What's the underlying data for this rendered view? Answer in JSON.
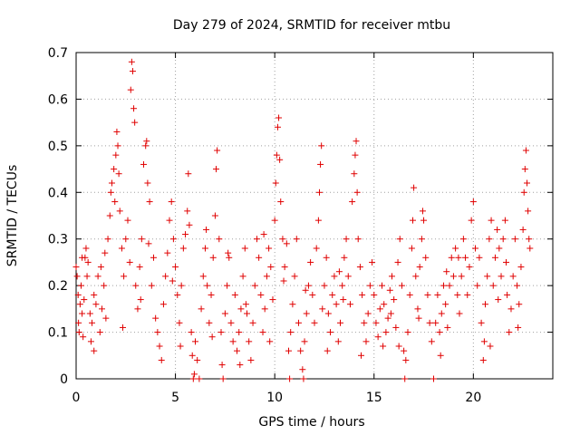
{
  "chart_data": {
    "type": "scatter",
    "title": "Day 279 of 2024, SRMTID for receiver mtbu",
    "xlabel": "GPS time / hours",
    "ylabel": "SRMTID / TECUs",
    "xlim": [
      0,
      24
    ],
    "ylim": [
      0,
      0.7
    ],
    "xticks": [
      0,
      5,
      10,
      15,
      20
    ],
    "xtick_labels": [
      "0",
      "5",
      "10",
      "15",
      "20"
    ],
    "yticks": [
      0,
      0.1,
      0.2,
      0.3,
      0.4,
      0.5,
      0.6,
      0.7
    ],
    "ytick_labels": [
      "0",
      "0.1",
      "0.2",
      "0.3",
      "0.4",
      "0.5",
      "0.6",
      "0.7"
    ],
    "grid": true,
    "marker": "plus",
    "color": "#e00000",
    "series": [
      {
        "name": "SRMTID",
        "points": [
          [
            0.0,
            0.24
          ],
          [
            0.05,
            0.22
          ],
          [
            0.1,
            0.18
          ],
          [
            0.12,
            0.12
          ],
          [
            0.15,
            0.1
          ],
          [
            0.2,
            0.16
          ],
          [
            0.25,
            0.2
          ],
          [
            0.3,
            0.14
          ],
          [
            0.35,
            0.09
          ],
          [
            0.4,
            0.17
          ],
          [
            0.45,
            0.26
          ],
          [
            0.5,
            0.28
          ],
          [
            0.55,
            0.22
          ],
          [
            0.6,
            0.25
          ],
          [
            0.7,
            0.14
          ],
          [
            0.75,
            0.08
          ],
          [
            0.8,
            0.12
          ],
          [
            0.9,
            0.18
          ],
          [
            1.0,
            0.16
          ],
          [
            1.1,
            0.22
          ],
          [
            1.2,
            0.1
          ],
          [
            1.3,
            0.15
          ],
          [
            1.4,
            0.2
          ],
          [
            1.5,
            0.13
          ],
          [
            1.6,
            0.3
          ],
          [
            1.7,
            0.35
          ],
          [
            1.75,
            0.4
          ],
          [
            1.8,
            0.42
          ],
          [
            1.9,
            0.45
          ],
          [
            1.95,
            0.38
          ],
          [
            2.0,
            0.48
          ],
          [
            2.05,
            0.53
          ],
          [
            2.1,
            0.5
          ],
          [
            2.15,
            0.44
          ],
          [
            2.2,
            0.36
          ],
          [
            2.3,
            0.28
          ],
          [
            2.4,
            0.22
          ],
          [
            2.5,
            0.3
          ],
          [
            2.6,
            0.34
          ],
          [
            2.7,
            0.25
          ],
          [
            2.75,
            0.62
          ],
          [
            2.8,
            0.68
          ],
          [
            2.85,
            0.66
          ],
          [
            2.9,
            0.58
          ],
          [
            2.95,
            0.55
          ],
          [
            3.0,
            0.2
          ],
          [
            3.1,
            0.15
          ],
          [
            3.2,
            0.24
          ],
          [
            3.3,
            0.3
          ],
          [
            3.4,
            0.46
          ],
          [
            3.5,
            0.5
          ],
          [
            3.55,
            0.51
          ],
          [
            3.6,
            0.42
          ],
          [
            3.7,
            0.38
          ],
          [
            3.8,
            0.2
          ],
          [
            3.9,
            0.26
          ],
          [
            4.0,
            0.13
          ],
          [
            4.1,
            0.1
          ],
          [
            4.2,
            0.07
          ],
          [
            4.3,
            0.04
          ],
          [
            4.4,
            0.16
          ],
          [
            4.5,
            0.22
          ],
          [
            4.6,
            0.27
          ],
          [
            4.7,
            0.34
          ],
          [
            4.8,
            0.38
          ],
          [
            4.9,
            0.3
          ],
          [
            5.0,
            0.24
          ],
          [
            5.1,
            0.18
          ],
          [
            5.2,
            0.12
          ],
          [
            5.3,
            0.2
          ],
          [
            5.4,
            0.28
          ],
          [
            5.5,
            0.31
          ],
          [
            5.6,
            0.36
          ],
          [
            5.65,
            0.44
          ],
          [
            5.7,
            0.33
          ],
          [
            5.8,
            0.1
          ],
          [
            5.85,
            0.05
          ],
          [
            5.9,
            0.0
          ],
          [
            5.95,
            0.01
          ],
          [
            6.0,
            0.08
          ],
          [
            6.1,
            0.04
          ],
          [
            6.2,
            0.0
          ],
          [
            6.3,
            0.15
          ],
          [
            6.4,
            0.22
          ],
          [
            6.5,
            0.28
          ],
          [
            6.6,
            0.2
          ],
          [
            6.7,
            0.12
          ],
          [
            6.8,
            0.18
          ],
          [
            6.9,
            0.26
          ],
          [
            7.0,
            0.35
          ],
          [
            7.05,
            0.45
          ],
          [
            7.1,
            0.49
          ],
          [
            7.2,
            0.3
          ],
          [
            7.3,
            0.1
          ],
          [
            7.35,
            0.03
          ],
          [
            7.4,
            0.0
          ],
          [
            7.5,
            0.14
          ],
          [
            7.6,
            0.2
          ],
          [
            7.7,
            0.26
          ],
          [
            7.8,
            0.12
          ],
          [
            7.9,
            0.08
          ],
          [
            8.0,
            0.18
          ],
          [
            8.1,
            0.06
          ],
          [
            8.2,
            0.1
          ],
          [
            8.3,
            0.15
          ],
          [
            8.4,
            0.22
          ],
          [
            8.5,
            0.28
          ],
          [
            8.6,
            0.14
          ],
          [
            8.7,
            0.08
          ],
          [
            8.8,
            0.04
          ],
          [
            8.9,
            0.12
          ],
          [
            9.0,
            0.2
          ],
          [
            9.1,
            0.3
          ],
          [
            9.2,
            0.26
          ],
          [
            9.3,
            0.18
          ],
          [
            9.4,
            0.1
          ],
          [
            9.5,
            0.15
          ],
          [
            9.6,
            0.22
          ],
          [
            9.7,
            0.28
          ],
          [
            9.8,
            0.24
          ],
          [
            9.9,
            0.17
          ],
          [
            10.0,
            0.34
          ],
          [
            10.05,
            0.42
          ],
          [
            10.1,
            0.48
          ],
          [
            10.15,
            0.54
          ],
          [
            10.2,
            0.56
          ],
          [
            10.25,
            0.47
          ],
          [
            10.3,
            0.38
          ],
          [
            10.4,
            0.3
          ],
          [
            10.5,
            0.24
          ],
          [
            10.6,
            0.29
          ],
          [
            10.7,
            0.06
          ],
          [
            10.75,
            0.0
          ],
          [
            10.8,
            0.1
          ],
          [
            10.9,
            0.16
          ],
          [
            11.0,
            0.22
          ],
          [
            11.1,
            0.3
          ],
          [
            11.2,
            0.12
          ],
          [
            11.3,
            0.06
          ],
          [
            11.4,
            0.02
          ],
          [
            11.45,
            0.0
          ],
          [
            11.5,
            0.08
          ],
          [
            11.6,
            0.14
          ],
          [
            11.7,
            0.2
          ],
          [
            11.8,
            0.25
          ],
          [
            11.9,
            0.18
          ],
          [
            12.0,
            0.12
          ],
          [
            12.1,
            0.28
          ],
          [
            12.2,
            0.34
          ],
          [
            12.25,
            0.4
          ],
          [
            12.3,
            0.46
          ],
          [
            12.35,
            0.5
          ],
          [
            12.4,
            0.15
          ],
          [
            12.5,
            0.2
          ],
          [
            12.6,
            0.26
          ],
          [
            12.7,
            0.14
          ],
          [
            12.8,
            0.1
          ],
          [
            12.9,
            0.18
          ],
          [
            13.0,
            0.22
          ],
          [
            13.1,
            0.16
          ],
          [
            13.2,
            0.08
          ],
          [
            13.3,
            0.12
          ],
          [
            13.4,
            0.2
          ],
          [
            13.5,
            0.26
          ],
          [
            13.6,
            0.3
          ],
          [
            13.7,
            0.22
          ],
          [
            13.8,
            0.16
          ],
          [
            13.9,
            0.38
          ],
          [
            14.0,
            0.44
          ],
          [
            14.05,
            0.48
          ],
          [
            14.1,
            0.51
          ],
          [
            14.15,
            0.4
          ],
          [
            14.2,
            0.3
          ],
          [
            14.3,
            0.24
          ],
          [
            14.4,
            0.18
          ],
          [
            14.5,
            0.12
          ],
          [
            14.6,
            0.08
          ],
          [
            14.7,
            0.14
          ],
          [
            14.8,
            0.2
          ],
          [
            14.9,
            0.25
          ],
          [
            15.0,
            0.18
          ],
          [
            15.1,
            0.12
          ],
          [
            15.2,
            0.09
          ],
          [
            15.3,
            0.15
          ],
          [
            15.4,
            0.2
          ],
          [
            15.5,
            0.16
          ],
          [
            15.6,
            0.1
          ],
          [
            15.7,
            0.13
          ],
          [
            15.8,
            0.19
          ],
          [
            15.9,
            0.22
          ],
          [
            16.0,
            0.17
          ],
          [
            16.1,
            0.11
          ],
          [
            16.2,
            0.25
          ],
          [
            16.3,
            0.3
          ],
          [
            16.4,
            0.2
          ],
          [
            16.5,
            0.06
          ],
          [
            16.55,
            0.0
          ],
          [
            16.6,
            0.04
          ],
          [
            16.7,
            0.1
          ],
          [
            16.8,
            0.18
          ],
          [
            16.9,
            0.28
          ],
          [
            16.95,
            0.34
          ],
          [
            17.0,
            0.41
          ],
          [
            17.1,
            0.22
          ],
          [
            17.2,
            0.15
          ],
          [
            17.3,
            0.24
          ],
          [
            17.4,
            0.3
          ],
          [
            17.45,
            0.36
          ],
          [
            17.5,
            0.34
          ],
          [
            17.6,
            0.26
          ],
          [
            17.7,
            0.18
          ],
          [
            17.8,
            0.12
          ],
          [
            17.9,
            0.08
          ],
          [
            18.0,
            0.0
          ],
          [
            18.1,
            0.12
          ],
          [
            18.2,
            0.18
          ],
          [
            18.3,
            0.1
          ],
          [
            18.4,
            0.14
          ],
          [
            18.5,
            0.2
          ],
          [
            18.6,
            0.16
          ],
          [
            18.7,
            0.11
          ],
          [
            18.8,
            0.2
          ],
          [
            18.9,
            0.26
          ],
          [
            19.0,
            0.22
          ],
          [
            19.1,
            0.28
          ],
          [
            19.2,
            0.18
          ],
          [
            19.3,
            0.14
          ],
          [
            19.4,
            0.22
          ],
          [
            19.5,
            0.3
          ],
          [
            19.6,
            0.26
          ],
          [
            19.7,
            0.18
          ],
          [
            19.8,
            0.24
          ],
          [
            19.9,
            0.34
          ],
          [
            20.0,
            0.38
          ],
          [
            20.1,
            0.28
          ],
          [
            20.2,
            0.2
          ],
          [
            20.3,
            0.26
          ],
          [
            20.4,
            0.12
          ],
          [
            20.5,
            0.04
          ],
          [
            20.55,
            0.08
          ],
          [
            20.6,
            0.16
          ],
          [
            20.7,
            0.22
          ],
          [
            20.8,
            0.3
          ],
          [
            20.9,
            0.34
          ],
          [
            21.0,
            0.2
          ],
          [
            21.1,
            0.26
          ],
          [
            21.2,
            0.32
          ],
          [
            21.3,
            0.28
          ],
          [
            21.4,
            0.22
          ],
          [
            21.5,
            0.3
          ],
          [
            21.6,
            0.34
          ],
          [
            21.7,
            0.18
          ],
          [
            21.8,
            0.1
          ],
          [
            21.9,
            0.15
          ],
          [
            22.0,
            0.22
          ],
          [
            22.1,
            0.3
          ],
          [
            22.2,
            0.2
          ],
          [
            22.3,
            0.16
          ],
          [
            22.4,
            0.24
          ],
          [
            22.5,
            0.32
          ],
          [
            22.55,
            0.4
          ],
          [
            22.6,
            0.45
          ],
          [
            22.65,
            0.49
          ],
          [
            22.7,
            0.42
          ],
          [
            22.75,
            0.36
          ],
          [
            22.8,
            0.3
          ],
          [
            22.85,
            0.28
          ],
          [
            0.3,
            0.26
          ],
          [
            1.45,
            0.27
          ],
          [
            3.25,
            0.17
          ],
          [
            4.85,
            0.21
          ],
          [
            6.55,
            0.32
          ],
          [
            8.55,
            0.16
          ],
          [
            9.45,
            0.31
          ],
          [
            11.55,
            0.19
          ],
          [
            13.45,
            0.17
          ],
          [
            15.45,
            0.07
          ],
          [
            17.25,
            0.13
          ],
          [
            19.25,
            0.26
          ],
          [
            21.25,
            0.17
          ],
          [
            0.9,
            0.06
          ],
          [
            2.35,
            0.11
          ],
          [
            5.25,
            0.07
          ],
          [
            6.85,
            0.09
          ],
          [
            8.25,
            0.03
          ],
          [
            9.75,
            0.08
          ],
          [
            12.65,
            0.06
          ],
          [
            14.35,
            0.05
          ],
          [
            16.25,
            0.07
          ],
          [
            18.35,
            0.05
          ],
          [
            20.85,
            0.07
          ],
          [
            22.25,
            0.11
          ],
          [
            1.25,
            0.24
          ],
          [
            3.65,
            0.29
          ],
          [
            7.65,
            0.27
          ],
          [
            10.45,
            0.21
          ],
          [
            13.25,
            0.23
          ],
          [
            15.85,
            0.14
          ],
          [
            18.65,
            0.23
          ],
          [
            21.65,
            0.25
          ]
        ]
      }
    ]
  }
}
